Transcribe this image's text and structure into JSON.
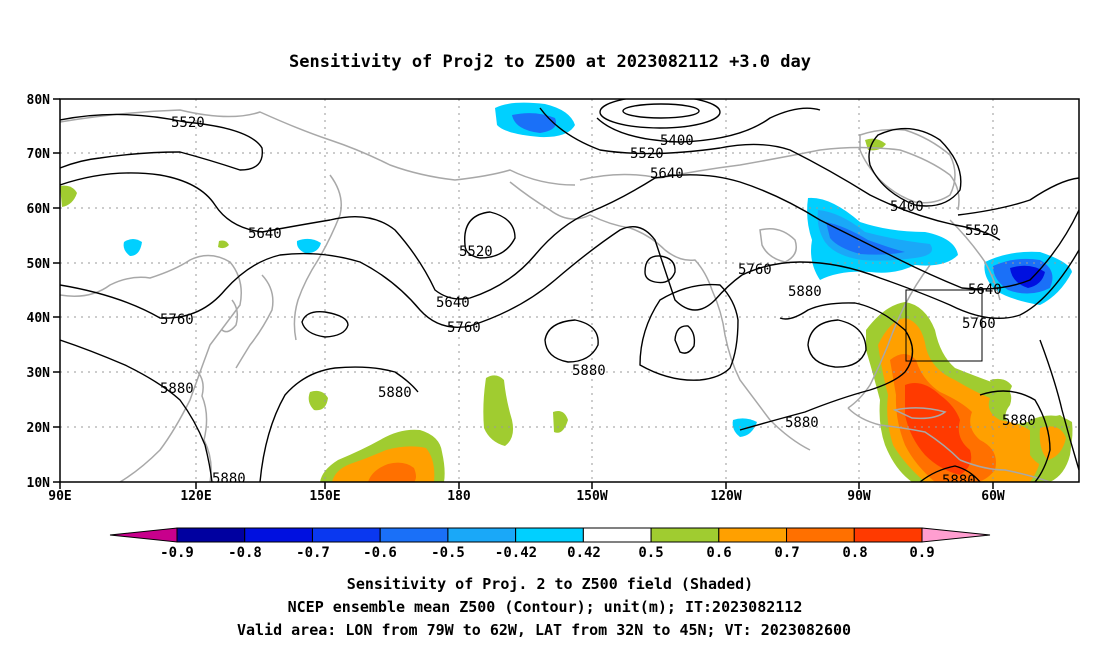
{
  "title": "Sensitivity of Proj2 to Z500 at 2023082112 +3.0 day",
  "lon_ticks": [
    "90E",
    "120E",
    "150E",
    "180",
    "150W",
    "120W",
    "90W",
    "60W"
  ],
  "lat_ticks": [
    "80N",
    "70N",
    "60N",
    "50N",
    "40N",
    "30N",
    "20N",
    "10N"
  ],
  "colorbar": {
    "labels": [
      "-0.9",
      "-0.8",
      "-0.7",
      "-0.6",
      "-0.5",
      "-0.42",
      "0.42",
      "0.5",
      "0.6",
      "0.7",
      "0.8",
      "0.9"
    ],
    "colors": [
      "#c8008c",
      "#0000a0",
      "#0010e0",
      "#0a38f0",
      "#1a70f8",
      "#1aa8f8",
      "#00d0ff",
      "#ffffff",
      "#a0cc30",
      "#ffa000",
      "#ff7000",
      "#ff3a00",
      "#ff0000",
      "#ff9ed0"
    ]
  },
  "contour_labels": [
    "5520",
    "5400",
    "5520",
    "5640",
    "5400",
    "5520",
    "5640",
    "5520",
    "5760",
    "5640",
    "5880",
    "5640",
    "5760",
    "5760",
    "5880",
    "5880",
    "5880",
    "5880",
    "5760",
    "5880",
    "5880",
    "5880"
  ],
  "captions": {
    "line1": "Sensitivity of Proj. 2 to Z500 field (Shaded)",
    "line2": "NCEP ensemble mean Z500 (Contour); unit(m); IT:2023082112",
    "line3": "Valid area: LON from 79W to 62W, LAT from 32N to 45N; VT: 2023082600"
  },
  "colors": {
    "green": "#a0cc30",
    "orange": "#ffa000",
    "dark_orange": "#ff7000",
    "red_orange": "#ff3a00",
    "light_blue": "#00d0ff",
    "sky_blue": "#1aa8f8",
    "blue": "#1a70f8",
    "dark_blue": "#0010e0",
    "coast": "#a8a8a8"
  }
}
